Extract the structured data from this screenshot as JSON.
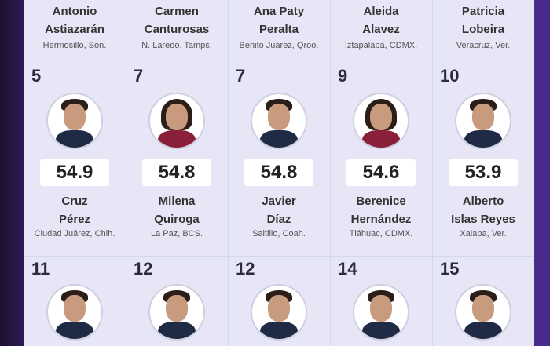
{
  "top_row": [
    {
      "name1": "Antonio",
      "name2": "Astiazarán",
      "city": "Hermosillo, Son."
    },
    {
      "name1": "Carmen",
      "name2": "Canturosas",
      "city": "N. Laredo, Tamps."
    },
    {
      "name1": "Ana Paty",
      "name2": "Peralta",
      "city": "Benito Juárez, Qroo."
    },
    {
      "name1": "Aleida",
      "name2": "Alavez",
      "city": "Iztapalapa, CDMX."
    },
    {
      "name1": "Patricia",
      "name2": "Lobeira",
      "city": "Veracruz, Ver."
    }
  ],
  "middle_row": [
    {
      "rank": "5",
      "score": "54.9",
      "name1": "Cruz",
      "name2": "Pérez",
      "city": "Ciudad Juárez, Chih."
    },
    {
      "rank": "7",
      "score": "54.8",
      "name1": "Milena",
      "name2": "Quiroga",
      "city": "La Paz, BCS."
    },
    {
      "rank": "7",
      "score": "54.8",
      "name1": "Javier",
      "name2": "Díaz",
      "city": "Saltillo, Coah."
    },
    {
      "rank": "9",
      "score": "54.6",
      "name1": "Berenice",
      "name2": "Hernández",
      "city": "Tláhuac, CDMX."
    },
    {
      "rank": "10",
      "score": "53.9",
      "name1": "Alberto",
      "name2": "Islas Reyes",
      "city": "Xalapa, Ver."
    }
  ],
  "bottom_row": [
    {
      "rank": "11"
    },
    {
      "rank": "12"
    },
    {
      "rank": "12"
    },
    {
      "rank": "14"
    },
    {
      "rank": "15"
    }
  ],
  "colors": {
    "panel": "#e6e6f6",
    "border_left": "#1c1030",
    "border_right": "#4a2a8a",
    "score_box": "#ffffff"
  }
}
